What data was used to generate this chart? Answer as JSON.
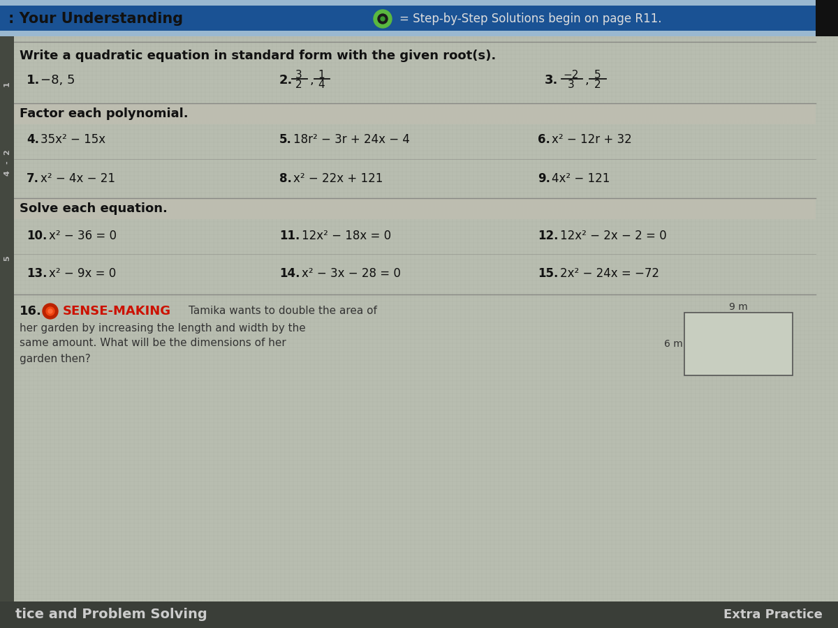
{
  "bg_color": "#b8bdb0",
  "header_bar_color": "#1a5294",
  "header_text_color": "#111111",
  "header_right_text_color": "#dddddd",
  "header_left": ": Your Understanding",
  "header_right": "= Step-by-Step Solutions begin on page R11.",
  "body_bg": "#c8c8b8",
  "bold_label_color": "#111111",
  "sense_making_color": "#cc1100",
  "bottom_bar_color": "#3a3e38",
  "bottom_text_color": "#cccccc",
  "bottom_left": "tice and Problem Solving",
  "bottom_right": "Extra Practice",
  "section1_header": "Write a quadratic equation in standard form with the given root(s).",
  "section2_header": "Factor each polynomial.",
  "section3_header": "Solve each equation.",
  "left_strip_color": "#444840",
  "right_strip_color": "#1a1a1a",
  "divider_color": "#888884",
  "grid_line_color": "#a0a098",
  "row_bg_alt": "#c0c0b0"
}
